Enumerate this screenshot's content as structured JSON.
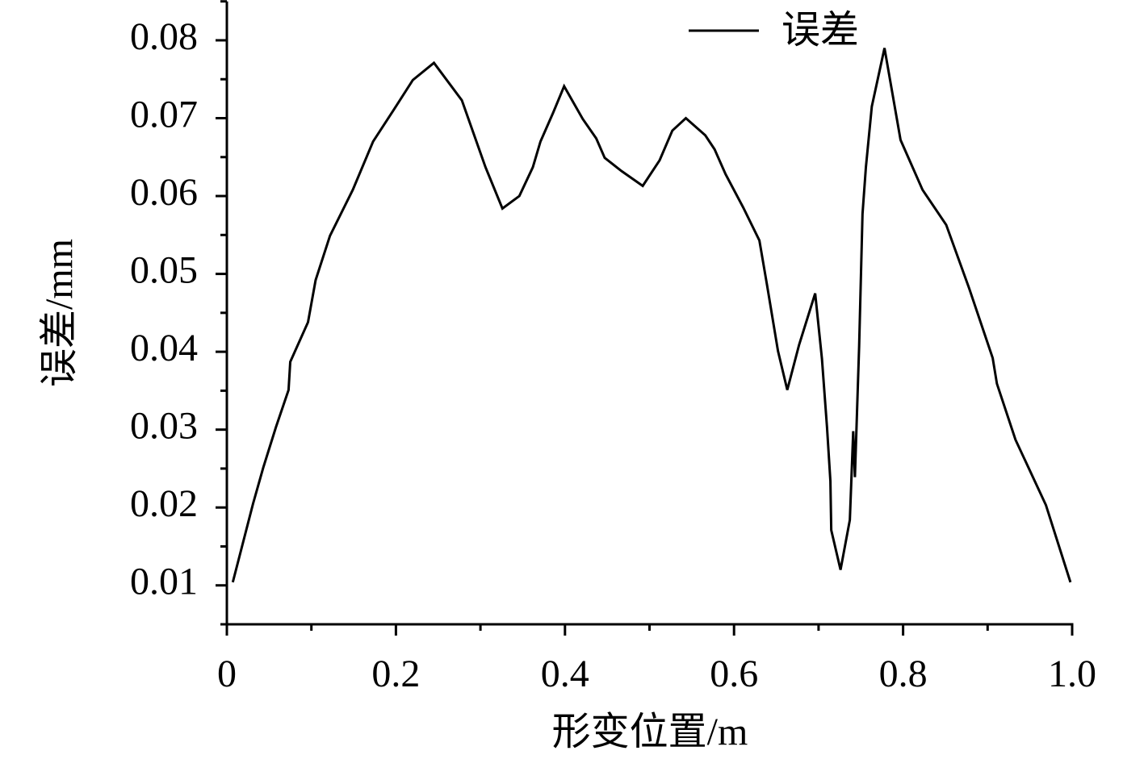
{
  "chart_data": {
    "type": "line",
    "x_label": "形变位置/m",
    "y_label": "误差/mm",
    "legend": "top",
    "xlim": [
      0,
      1
    ],
    "ylim": [
      0.005,
      0.085
    ],
    "xticks": [
      0,
      0.2,
      0.4,
      0.6,
      0.8,
      {
        "value": 1,
        "label": "1.0"
      }
    ],
    "xticks_minor": [
      0.1,
      0.3,
      0.5,
      0.7,
      0.9
    ],
    "yticks": [
      0.01,
      0.02,
      0.03,
      0.04,
      0.05,
      0.06,
      0.07,
      0.08
    ],
    "yticks_minor": [
      0.005,
      0.015,
      0.025,
      0.035,
      0.045,
      0.055,
      0.065,
      0.075,
      0.085
    ],
    "x": [
      0.007,
      0.031,
      0.043,
      0.058,
      0.073,
      0.075,
      0.096,
      0.105,
      0.122,
      0.149,
      0.173,
      0.197,
      0.22,
      0.245,
      0.278,
      0.306,
      0.326,
      0.346,
      0.362,
      0.371,
      0.386,
      0.399,
      0.421,
      0.437,
      0.447,
      0.467,
      0.492,
      0.512,
      0.527,
      0.543,
      0.566,
      0.577,
      0.59,
      0.611,
      0.63,
      0.639,
      0.652,
      0.663,
      0.677,
      0.696,
      0.704,
      0.71,
      0.714,
      0.715,
      0.726,
      0.737,
      0.741,
      0.743,
      0.748,
      0.752,
      0.756,
      0.763,
      0.778,
      0.797,
      0.823,
      0.851,
      0.878,
      0.906,
      0.911,
      0.933,
      0.969,
      0.998
    ],
    "series": [
      {
        "name": "误差",
        "color": "#000000",
        "values": [
          0.0104,
          0.0205,
          0.0251,
          0.0303,
          0.0351,
          0.0387,
          0.0438,
          0.0492,
          0.0549,
          0.0608,
          0.067,
          0.071,
          0.0749,
          0.0771,
          0.0723,
          0.0637,
          0.0584,
          0.06,
          0.0637,
          0.067,
          0.0707,
          0.0741,
          0.0699,
          0.0674,
          0.0649,
          0.0632,
          0.0613,
          0.0646,
          0.0684,
          0.07,
          0.0678,
          0.066,
          0.0628,
          0.0585,
          0.0543,
          0.0486,
          0.0401,
          0.0351,
          0.0409,
          0.0475,
          0.0391,
          0.0303,
          0.0234,
          0.0171,
          0.012,
          0.0184,
          0.0298,
          0.0239,
          0.0407,
          0.0577,
          0.0637,
          0.0715,
          0.079,
          0.0672,
          0.0608,
          0.0563,
          0.0482,
          0.0392,
          0.0359,
          0.0287,
          0.0203,
          0.0104
        ]
      }
    ]
  }
}
